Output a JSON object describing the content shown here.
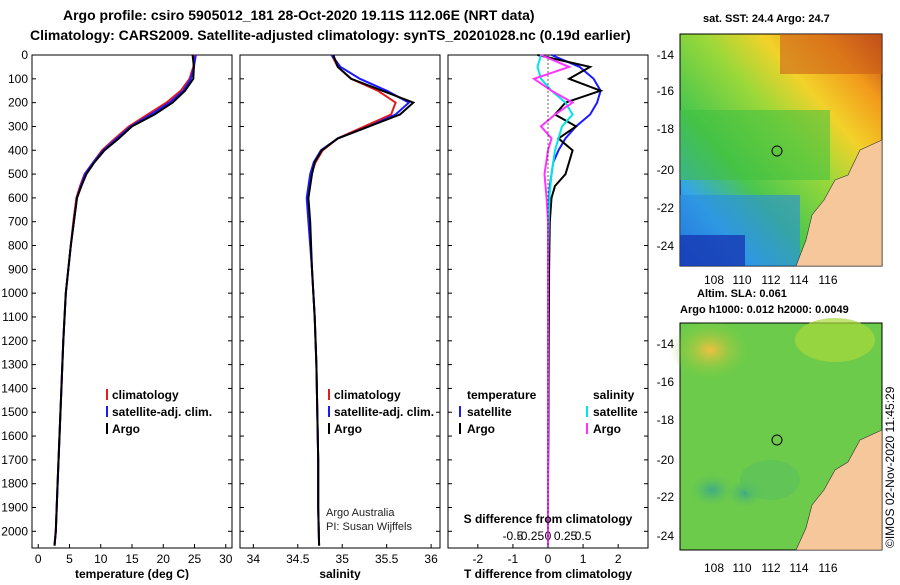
{
  "header": {
    "line1": "Argo profile: csiro 5905012_181 28-Oct-2020 19.11S 112.06E (NRT data)",
    "line2": "Climatology: CARS2009. Satellite-adjusted climatology: synTS_20201028.nc (0.19d earlier)"
  },
  "depth_ticks": [
    "0",
    "100",
    "200",
    "300",
    "400",
    "500",
    "600",
    "700",
    "800",
    "900",
    "1000",
    "1100",
    "1200",
    "1300",
    "1400",
    "1500",
    "1600",
    "1700",
    "1800",
    "1900",
    "2000"
  ],
  "temp_panel": {
    "xlabel": "temperature (deg C)",
    "xticks": [
      "0",
      "5",
      "10",
      "15",
      "20",
      "25",
      "30"
    ],
    "legend": [
      "climatology",
      "satellite-adj. clim.",
      "Argo"
    ]
  },
  "sal_panel": {
    "xlabel": "salinity",
    "xticks": [
      "34",
      "34.5",
      "35",
      "35.5",
      "36"
    ],
    "legend": [
      "climatology",
      "satellite-adj. clim.",
      "Argo"
    ],
    "credit1": "Argo Australia",
    "credit2": "PI: Susan Wijffels"
  },
  "diff_panel": {
    "xlabel": "T difference from climatology",
    "xticks": [
      "-2",
      "-1",
      "0",
      "1",
      "2"
    ],
    "s_label": "S difference from climatology",
    "s_ticks": [
      "-0.5",
      "-0.25",
      "0",
      "0.25",
      "0.5"
    ],
    "legend_t_title": "temperature",
    "legend_s_title": "salinity",
    "legend_t": [
      "satellite",
      "Argo"
    ],
    "legend_s": [
      "satellite",
      "Argo"
    ]
  },
  "map_sst": {
    "title": "sat. SST: 24.4 Argo: 24.7",
    "yticks": [
      "-14",
      "-16",
      "-18",
      "-20",
      "-22",
      "-24"
    ],
    "xticks": [
      "108",
      "110",
      "112",
      "114",
      "116"
    ]
  },
  "map_sla": {
    "title1": "Altim. SLA: 0.061",
    "title2": "Argo h1000: 0.012 h2000: 0.0049",
    "yticks": [
      "-14",
      "-16",
      "-18",
      "-20",
      "-22",
      "-24"
    ],
    "xticks": [
      "108",
      "110",
      "112",
      "114",
      "116"
    ]
  },
  "timestamp": "©IMOS 02-Nov-2020 11:45:29",
  "colors": {
    "climatology": "#e41a1c",
    "satellite": "#1a1aff",
    "argo": "#000000",
    "sat_s": "#00e5e5",
    "argo_s": "#ff33ff"
  },
  "chart_data": [
    {
      "type": "line",
      "title": "temperature profile",
      "xlabel": "temperature (deg C)",
      "ylabel": "depth",
      "xlim": [
        -1,
        31
      ],
      "ylim": [
        2070,
        0
      ],
      "series": [
        {
          "name": "climatology",
          "x": [
            25.0,
            24.8,
            24.2,
            22.8,
            20.5,
            17.5,
            14.5,
            12.3,
            10.2,
            8.8,
            7.4,
            6.7,
            6.1,
            5.6,
            5.2,
            4.8,
            4.4,
            4.0,
            3.7,
            3.4,
            3.1,
            2.8,
            2.6
          ],
          "y": [
            0,
            50,
            100,
            150,
            200,
            250,
            300,
            350,
            400,
            450,
            500,
            550,
            600,
            700,
            800,
            900,
            1000,
            1200,
            1400,
            1600,
            1800,
            2000,
            2060
          ]
        },
        {
          "name": "satellite-adj. clim.",
          "x": [
            25.2,
            24.9,
            24.4,
            23.2,
            21.0,
            18.0,
            14.8,
            12.6,
            10.4,
            8.8,
            7.5,
            6.8,
            6.2,
            5.7,
            5.2,
            4.8,
            4.4,
            4.0,
            3.7,
            3.4,
            3.1,
            2.8,
            2.6
          ],
          "y": [
            0,
            50,
            100,
            150,
            200,
            250,
            300,
            350,
            400,
            450,
            500,
            550,
            600,
            700,
            800,
            900,
            1000,
            1200,
            1400,
            1600,
            1800,
            2000,
            2060
          ]
        },
        {
          "name": "Argo",
          "x": [
            24.7,
            24.9,
            24.8,
            23.5,
            21.5,
            18.6,
            15.0,
            12.9,
            10.6,
            9.0,
            7.7,
            6.9,
            6.2,
            5.7,
            5.2,
            4.8,
            4.4,
            4.0,
            3.7,
            3.4,
            3.1,
            2.8,
            2.6
          ],
          "y": [
            0,
            50,
            100,
            150,
            200,
            250,
            300,
            350,
            400,
            450,
            500,
            550,
            600,
            700,
            800,
            900,
            1000,
            1200,
            1400,
            1600,
            1800,
            2000,
            2060
          ]
        }
      ]
    },
    {
      "type": "line",
      "title": "salinity profile",
      "xlabel": "salinity",
      "ylabel": "depth",
      "xlim": [
        33.85,
        36.1
      ],
      "ylim": [
        2070,
        0
      ],
      "series": [
        {
          "name": "climatology",
          "x": [
            34.88,
            34.95,
            35.1,
            35.4,
            35.6,
            35.55,
            35.25,
            34.95,
            34.78,
            34.7,
            34.65,
            34.62,
            34.63,
            34.66,
            34.69,
            34.71,
            34.72,
            34.73,
            34.73,
            34.74
          ],
          "y": [
            0,
            50,
            100,
            150,
            200,
            250,
            300,
            350,
            400,
            450,
            500,
            600,
            700,
            900,
            1100,
            1300,
            1500,
            1700,
            1900,
            2060
          ]
        },
        {
          "name": "satellite-adj. clim.",
          "x": [
            34.88,
            34.98,
            35.2,
            35.5,
            35.75,
            35.6,
            35.3,
            34.95,
            34.76,
            34.68,
            34.64,
            34.6,
            34.62,
            34.66,
            34.69,
            34.71,
            34.72,
            34.73,
            34.73,
            34.74
          ],
          "y": [
            0,
            50,
            100,
            150,
            200,
            250,
            300,
            350,
            400,
            450,
            500,
            600,
            700,
            900,
            1100,
            1300,
            1500,
            1700,
            1900,
            2060
          ]
        },
        {
          "name": "Argo",
          "x": [
            34.9,
            34.95,
            35.1,
            35.45,
            35.8,
            35.65,
            35.3,
            34.95,
            34.77,
            34.69,
            34.66,
            34.62,
            34.64,
            34.66,
            34.69,
            34.71,
            34.72,
            34.73,
            34.73,
            34.74
          ],
          "y": [
            0,
            50,
            100,
            150,
            200,
            250,
            300,
            350,
            400,
            450,
            500,
            600,
            700,
            900,
            1100,
            1300,
            1500,
            1700,
            1900,
            2060
          ]
        }
      ]
    },
    {
      "type": "line",
      "title": "difference from climatology",
      "xlabel": "T difference from climatology",
      "ylabel": "depth",
      "xlim": [
        -2.85,
        2.85
      ],
      "ylim": [
        2070,
        0
      ],
      "s_axis": {
        "label": "S difference from climatology",
        "ticks": [
          -0.5,
          -0.25,
          0,
          0.25,
          0.5
        ]
      },
      "series": [
        {
          "name": "temperature satellite",
          "x": [
            0.1,
            0.9,
            1.3,
            1.5,
            1.4,
            1.2,
            0.8,
            0.5,
            0.3,
            0.15,
            0.1,
            0.05,
            0.03,
            0.02,
            0.02,
            0.01,
            0.01,
            0.0,
            0.0
          ],
          "y": [
            0,
            50,
            100,
            150,
            200,
            250,
            300,
            350,
            400,
            450,
            500,
            550,
            600,
            700,
            900,
            1200,
            1500,
            1800,
            2060
          ]
        },
        {
          "name": "temperature Argo",
          "x": [
            -0.3,
            1.2,
            0.6,
            1.5,
            0.5,
            0.2,
            0.8,
            0.3,
            0.7,
            0.6,
            0.5,
            0.2,
            0.1,
            0.05,
            0.03,
            0.02,
            0.01,
            0.0,
            0.0
          ],
          "y": [
            0,
            50,
            100,
            150,
            200,
            250,
            300,
            350,
            400,
            450,
            500,
            550,
            600,
            700,
            900,
            1200,
            1500,
            1800,
            2060
          ]
        },
        {
          "name": "salinity satellite",
          "x": [
            -0.1,
            -0.15,
            -0.1,
            0.05,
            0.25,
            0.35,
            0.2,
            0.15,
            0.1,
            0.05,
            0.02,
            0.01,
            0.0,
            0.0,
            0.0,
            0.0
          ],
          "y": [
            0,
            50,
            100,
            150,
            200,
            250,
            300,
            350,
            400,
            500,
            600,
            700,
            900,
            1200,
            1600,
            2060
          ]
        },
        {
          "name": "salinity Argo",
          "x": [
            -0.1,
            0.3,
            -0.2,
            0.05,
            0.35,
            0.1,
            -0.1,
            0.05,
            0.0,
            -0.05,
            -0.02,
            0.0,
            0.0,
            0.0,
            0.0,
            0.0
          ],
          "y": [
            0,
            50,
            100,
            150,
            200,
            250,
            300,
            350,
            400,
            500,
            600,
            700,
            900,
            1200,
            1600,
            2060
          ]
        }
      ]
    }
  ]
}
